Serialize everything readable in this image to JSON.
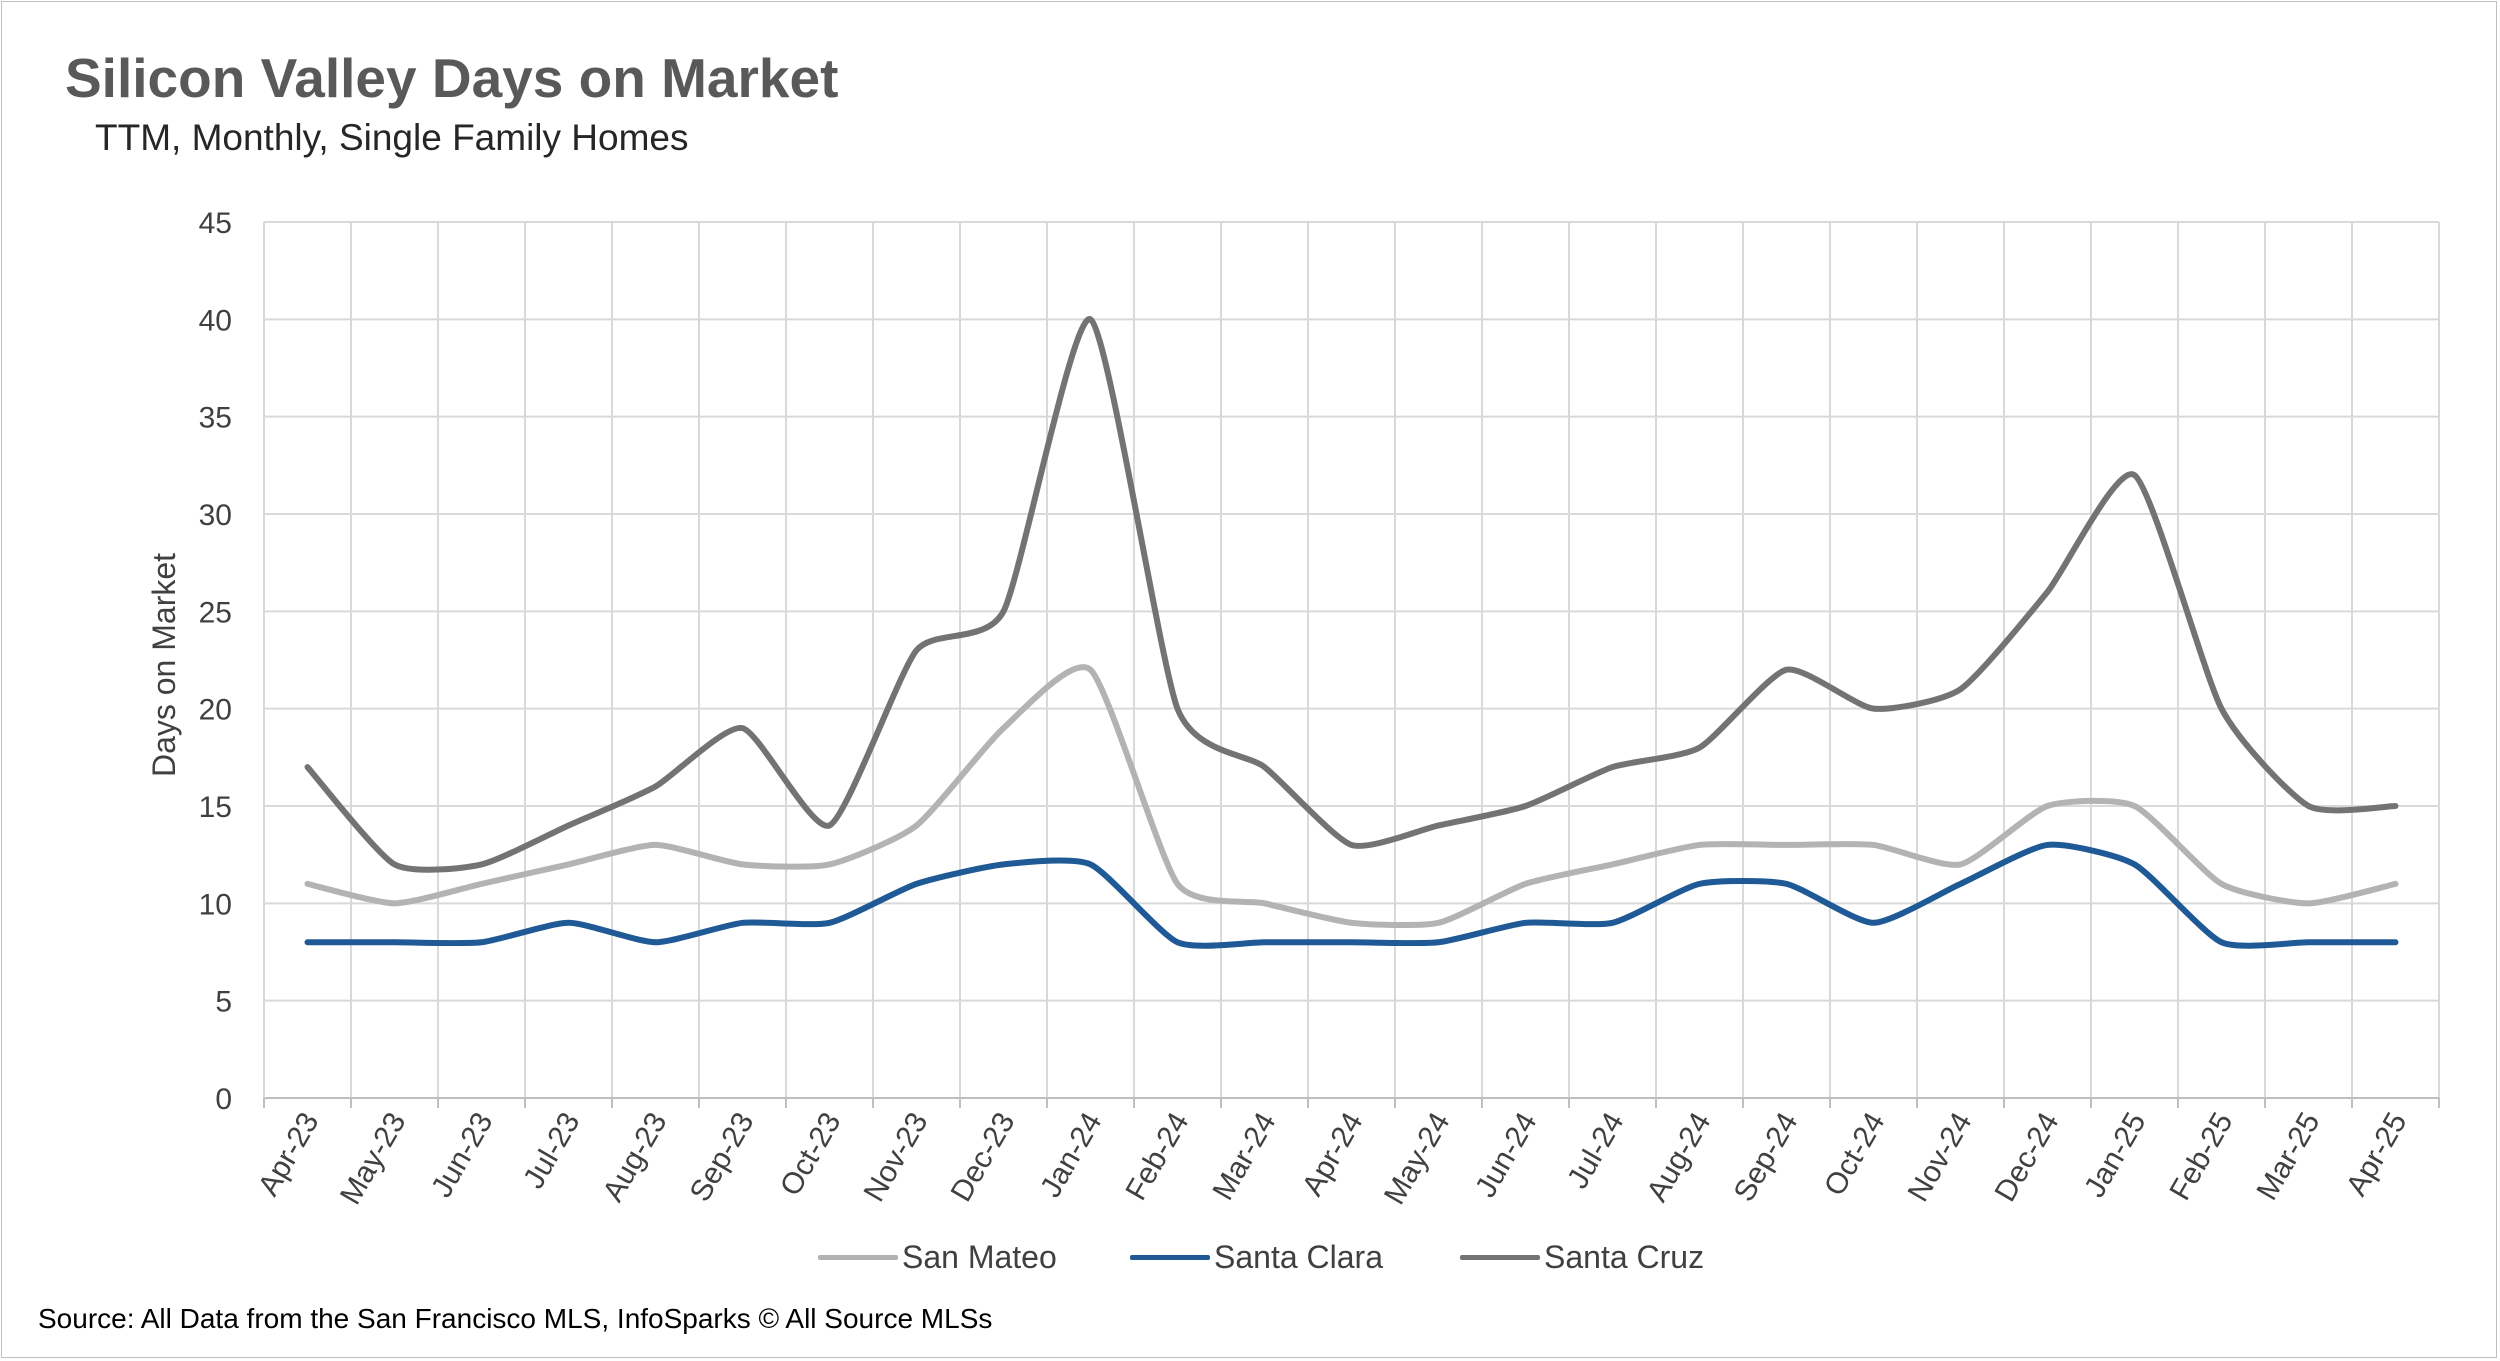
{
  "title": "Silicon Valley Days on Market",
  "subtitle": "TTM, Monthly, Single Family Homes",
  "source": "Source: All Data from the San Francisco MLS, InfoSparks © All Source MLSs",
  "chart_data": {
    "type": "line",
    "ylabel": "Days on Market",
    "xlabel": "",
    "ylim": [
      0,
      45
    ],
    "yticks": [
      "0",
      "5",
      "10",
      "15",
      "20",
      "25",
      "30",
      "35",
      "40",
      "45"
    ],
    "grid": true,
    "legend_position": "bottom",
    "categories": [
      "Apr-23",
      "May-23",
      "Jun-23",
      "Jul-23",
      "Aug-23",
      "Sep-23",
      "Oct-23",
      "Nov-23",
      "Dec-23",
      "Jan-24",
      "Feb-24",
      "Mar-24",
      "Apr-24",
      "May-24",
      "Jun-24",
      "Jul-24",
      "Aug-24",
      "Sep-24",
      "Oct-24",
      "Nov-24",
      "Dec-24",
      "Jan-25",
      "Feb-25",
      "Mar-25",
      "Apr-25"
    ],
    "series": [
      {
        "name": "San Mateo",
        "color": "#b3b3b3",
        "values": [
          11,
          10,
          11,
          12,
          13,
          12,
          12,
          14,
          19,
          22,
          11,
          10,
          9,
          9,
          11,
          12,
          13,
          13,
          13,
          12,
          15,
          15,
          11,
          10,
          11
        ]
      },
      {
        "name": "Santa Clara",
        "color": "#1f5a96",
        "values": [
          8,
          8,
          8,
          9,
          8,
          9,
          9,
          11,
          12,
          12,
          8,
          8,
          8,
          8,
          9,
          9,
          11,
          11,
          9,
          11,
          13,
          12,
          8,
          8,
          8
        ]
      },
      {
        "name": "Santa Cruz",
        "color": "#737373",
        "values": [
          17,
          12,
          12,
          14,
          16,
          19,
          14,
          23,
          25,
          40,
          20,
          17,
          13,
          14,
          15,
          17,
          18,
          22,
          20,
          21,
          26,
          32,
          20,
          15,
          15
        ]
      }
    ]
  }
}
